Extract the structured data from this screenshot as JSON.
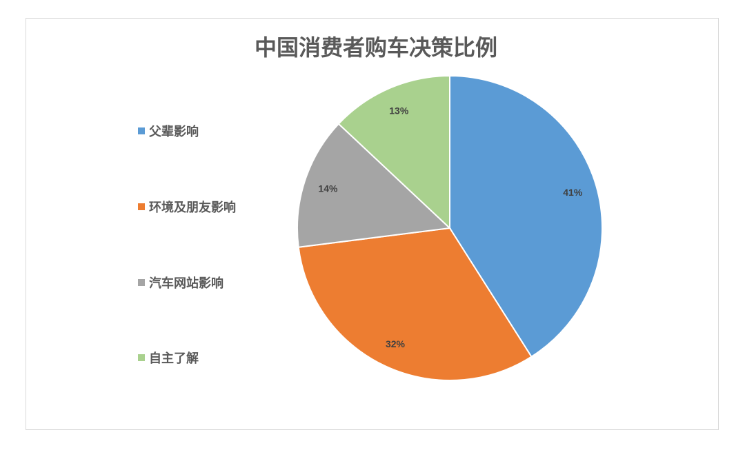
{
  "chart_data": {
    "type": "pie",
    "title": "中国消费者购车决策比例",
    "categories": [
      "父辈影响",
      "环境及朋友影响",
      "汽车网站影响",
      "自主了解"
    ],
    "values": [
      41,
      32,
      14,
      13
    ],
    "data_labels": [
      "41%",
      "32%",
      "14%",
      "13%"
    ],
    "colors": [
      "#5b9bd5",
      "#ed7d31",
      "#a5a5a5",
      "#a9d18e"
    ],
    "legend_position": "left",
    "start_angle": "top, clockwise"
  }
}
